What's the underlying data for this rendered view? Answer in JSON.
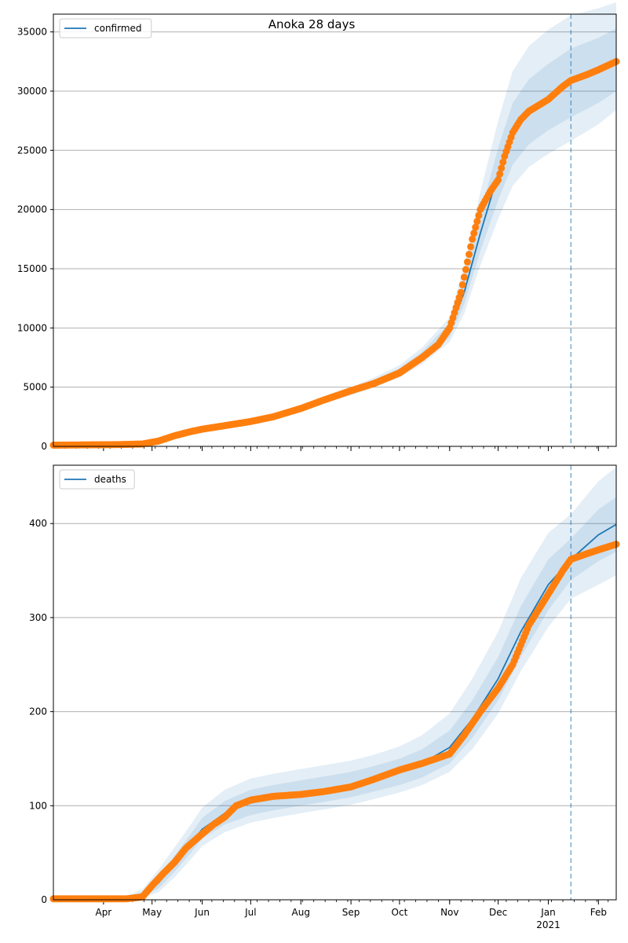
{
  "chart_data": [
    {
      "type": "line",
      "title": "Anoka 28 days",
      "xlabel": "",
      "ylabel": "",
      "ylim": [
        0,
        36500
      ],
      "yticks": [
        0,
        5000,
        10000,
        15000,
        20000,
        25000,
        30000,
        35000
      ],
      "ytick_labels": [
        "0",
        "5000",
        "10000",
        "15000",
        "20000",
        "25000",
        "30000",
        "35000"
      ],
      "grid": "horizontal",
      "legend": {
        "placement": "top-left",
        "entries": [
          "confirmed"
        ]
      },
      "forecast_start": "2021-01-15",
      "series": [
        {
          "name": "confirmed",
          "kind": "model-median",
          "color": "#1f77b4",
          "x": [
            "2020-03-01",
            "2020-03-15",
            "2020-04-01",
            "2020-04-15",
            "2020-05-01",
            "2020-05-15",
            "2020-06-01",
            "2020-06-15",
            "2020-07-01",
            "2020-07-15",
            "2020-08-01",
            "2020-08-15",
            "2020-09-01",
            "2020-09-15",
            "2020-10-01",
            "2020-10-15",
            "2020-11-01",
            "2020-11-10",
            "2020-11-20",
            "2020-12-01",
            "2020-12-10",
            "2020-12-20",
            "2021-01-01",
            "2021-01-15",
            "2021-02-01",
            "2021-02-12"
          ],
          "values": [
            50,
            60,
            80,
            120,
            350,
            900,
            1500,
            1800,
            2100,
            2500,
            3200,
            3900,
            4650,
            5350,
            6300,
            7600,
            9800,
            13000,
            18000,
            23000,
            26500,
            28300,
            29500,
            30700,
            31600,
            32300
          ],
          "bands": [
            {
              "lower": [
                50,
                60,
                80,
                100,
                300,
                820,
                1400,
                1720,
                2000,
                2380,
                3050,
                3720,
                4450,
                5100,
                6000,
                7200,
                9200,
                12000,
                16500,
                20800,
                23800,
                25500,
                26700,
                27800,
                29000,
                30000
              ],
              "upper": [
                50,
                60,
                80,
                140,
                400,
                980,
                1600,
                1880,
                2200,
                2620,
                3350,
                4080,
                4850,
                5600,
                6600,
                8000,
                10400,
                14200,
                19700,
                25200,
                29000,
                31000,
                32300,
                33600,
                34500,
                35300
              ]
            },
            {
              "lower": [
                50,
                60,
                80,
                90,
                260,
                760,
                1330,
                1650,
                1930,
                2300,
                2950,
                3600,
                4300,
                4950,
                5800,
                6950,
                8800,
                11200,
                15300,
                19200,
                22000,
                23600,
                24700,
                25800,
                27200,
                28400
              ],
              "upper": [
                50,
                60,
                80,
                160,
                450,
                1050,
                1680,
                1950,
                2280,
                2720,
                3480,
                4220,
                5020,
                5800,
                6850,
                8350,
                10900,
                15300,
                21500,
                27500,
                31700,
                33800,
                35200,
                36400,
                37000,
                37500
              ]
            }
          ]
        },
        {
          "name": "observed",
          "kind": "points",
          "color": "#ff7f0e",
          "x": [
            "2020-03-01",
            "2020-04-10",
            "2020-04-25",
            "2020-05-05",
            "2020-05-15",
            "2020-05-25",
            "2020-06-01",
            "2020-06-15",
            "2020-07-01",
            "2020-07-15",
            "2020-08-01",
            "2020-08-15",
            "2020-09-01",
            "2020-09-15",
            "2020-10-01",
            "2020-10-15",
            "2020-10-25",
            "2020-11-01",
            "2020-11-08",
            "2020-11-15",
            "2020-11-20",
            "2020-11-26",
            "2020-12-01",
            "2020-12-05",
            "2020-12-10",
            "2020-12-15",
            "2020-12-20",
            "2021-01-01",
            "2021-01-10",
            "2021-01-15",
            "2021-01-25",
            "2021-02-01",
            "2021-02-12"
          ],
          "values": [
            100,
            150,
            200,
            450,
            900,
            1250,
            1450,
            1750,
            2100,
            2500,
            3200,
            3900,
            4700,
            5300,
            6200,
            7500,
            8600,
            10000,
            13000,
            17500,
            20000,
            21500,
            22500,
            24500,
            26500,
            27600,
            28300,
            29300,
            30400,
            30900,
            31400,
            31800,
            32500
          ]
        }
      ]
    },
    {
      "type": "line",
      "title": "",
      "xlabel": "",
      "ylabel": "",
      "ylim": [
        0,
        462
      ],
      "yticks": [
        0,
        100,
        200,
        300,
        400
      ],
      "ytick_labels": [
        "0",
        "100",
        "200",
        "300",
        "400"
      ],
      "x_tick_labels": [
        "Apr",
        "May",
        "Jun",
        "Jul",
        "Aug",
        "Sep",
        "Oct",
        "Nov",
        "Dec",
        "Jan",
        "Feb"
      ],
      "x_tick_dates": [
        "2020-04-01",
        "2020-05-01",
        "2020-06-01",
        "2020-07-01",
        "2020-08-01",
        "2020-09-01",
        "2020-10-01",
        "2020-11-01",
        "2020-12-01",
        "2021-01-01",
        "2021-02-01"
      ],
      "x_year_label": "2021",
      "grid": "horizontal",
      "legend": {
        "placement": "top-left",
        "entries": [
          "deaths"
        ]
      },
      "forecast_start": "2021-01-15",
      "series": [
        {
          "name": "deaths",
          "kind": "model-median",
          "color": "#1f77b4",
          "x": [
            "2020-03-01",
            "2020-04-01",
            "2020-04-15",
            "2020-04-25",
            "2020-05-05",
            "2020-05-15",
            "2020-05-25",
            "2020-06-01",
            "2020-06-15",
            "2020-07-01",
            "2020-07-15",
            "2020-08-01",
            "2020-08-15",
            "2020-09-01",
            "2020-09-15",
            "2020-10-01",
            "2020-10-15",
            "2020-11-01",
            "2020-11-15",
            "2020-12-01",
            "2020-12-15",
            "2021-01-01",
            "2021-01-15",
            "2021-02-01",
            "2021-02-12"
          ],
          "values": [
            1,
            1,
            2,
            5,
            18,
            38,
            60,
            75,
            92,
            103,
            108,
            113,
            117,
            122,
            128,
            136,
            145,
            162,
            192,
            235,
            285,
            335,
            362,
            388,
            399
          ],
          "bands": [
            {
              "lower": [
                1,
                1,
                1,
                3,
                12,
                30,
                50,
                65,
                80,
                90,
                95,
                100,
                104,
                109,
                115,
                122,
                130,
                145,
                172,
                212,
                258,
                308,
                340,
                360,
                370
              ],
              "upper": [
                1,
                1,
                3,
                8,
                25,
                47,
                70,
                87,
                105,
                117,
                122,
                127,
                131,
                136,
                142,
                150,
                160,
                180,
                212,
                258,
                312,
                362,
                384,
                415,
                428
              ]
            },
            {
              "lower": [
                1,
                1,
                1,
                2,
                8,
                24,
                43,
                57,
                72,
                82,
                87,
                92,
                96,
                101,
                107,
                114,
                122,
                136,
                160,
                198,
                243,
                290,
                320,
                335,
                345
              ],
              "upper": [
                1,
                2,
                4,
                11,
                32,
                56,
                80,
                98,
                117,
                129,
                134,
                139,
                143,
                148,
                154,
                163,
                175,
                198,
                235,
                285,
                342,
                390,
                410,
                445,
                460
              ]
            }
          ]
        },
        {
          "name": "observed",
          "kind": "points",
          "color": "#ff7f0e",
          "x": [
            "2020-03-01",
            "2020-04-15",
            "2020-04-25",
            "2020-05-01",
            "2020-05-08",
            "2020-05-15",
            "2020-05-22",
            "2020-06-01",
            "2020-06-08",
            "2020-06-15",
            "2020-06-22",
            "2020-07-01",
            "2020-07-15",
            "2020-08-01",
            "2020-08-15",
            "2020-09-01",
            "2020-09-15",
            "2020-10-01",
            "2020-10-15",
            "2020-11-01",
            "2020-11-10",
            "2020-11-20",
            "2020-12-01",
            "2020-12-10",
            "2020-12-20",
            "2021-01-01",
            "2021-01-10",
            "2021-01-15",
            "2021-01-25",
            "2021-02-01",
            "2021-02-12"
          ],
          "values": [
            1,
            1,
            3,
            15,
            28,
            40,
            55,
            70,
            80,
            88,
            100,
            106,
            110,
            112,
            115,
            120,
            128,
            138,
            145,
            155,
            175,
            200,
            225,
            250,
            292,
            325,
            350,
            362,
            368,
            372,
            378
          ]
        }
      ]
    }
  ]
}
